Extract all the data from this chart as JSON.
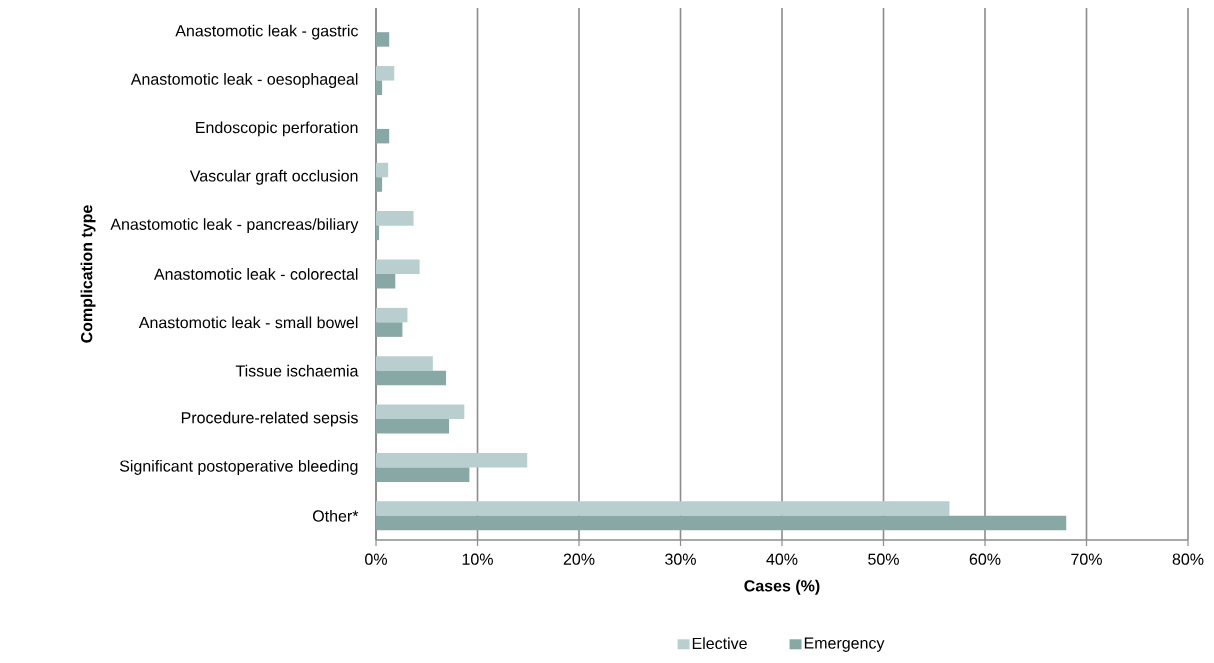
{
  "chart_data": {
    "type": "bar",
    "orientation": "horizontal",
    "xlabel": "Cases (%)",
    "ylabel": "Complication type",
    "categories": [
      "Anastomotic leak - gastric",
      "Anastomotic leak - oesophageal",
      "Endoscopic perforation",
      "Vascular graft occlusion",
      "Anastomotic leak - pancreas/biliary",
      "Anastomotic leak - colorectal",
      "Anastomotic leak - small bowel",
      "Tissue ischaemia",
      "Procedure-related sepsis",
      "Significant postoperative bleeding",
      "Other*"
    ],
    "series": [
      {
        "name": "Elective",
        "color": "#b9cfcf",
        "values": [
          0,
          1.8,
          0,
          1.2,
          3.7,
          4.3,
          3.1,
          5.6,
          8.7,
          14.9,
          56.5
        ]
      },
      {
        "name": "Emergency",
        "color": "#88a8a6",
        "values": [
          1.3,
          0.6,
          1.3,
          0.6,
          0.3,
          1.9,
          2.6,
          6.9,
          7.2,
          9.2,
          68.0
        ]
      }
    ],
    "xlim": [
      0,
      80
    ],
    "xticks": [
      {
        "value": 0,
        "label": "0%"
      },
      {
        "value": 10,
        "label": "10%"
      },
      {
        "value": 20,
        "label": "20%"
      },
      {
        "value": 30,
        "label": "30%"
      },
      {
        "value": 40,
        "label": "40%"
      },
      {
        "value": 50,
        "label": "50%"
      },
      {
        "value": 60,
        "label": "60%"
      },
      {
        "value": 70,
        "label": "70%"
      },
      {
        "value": 80,
        "label": "80%"
      }
    ],
    "grid": "x",
    "legend": "bottom"
  }
}
